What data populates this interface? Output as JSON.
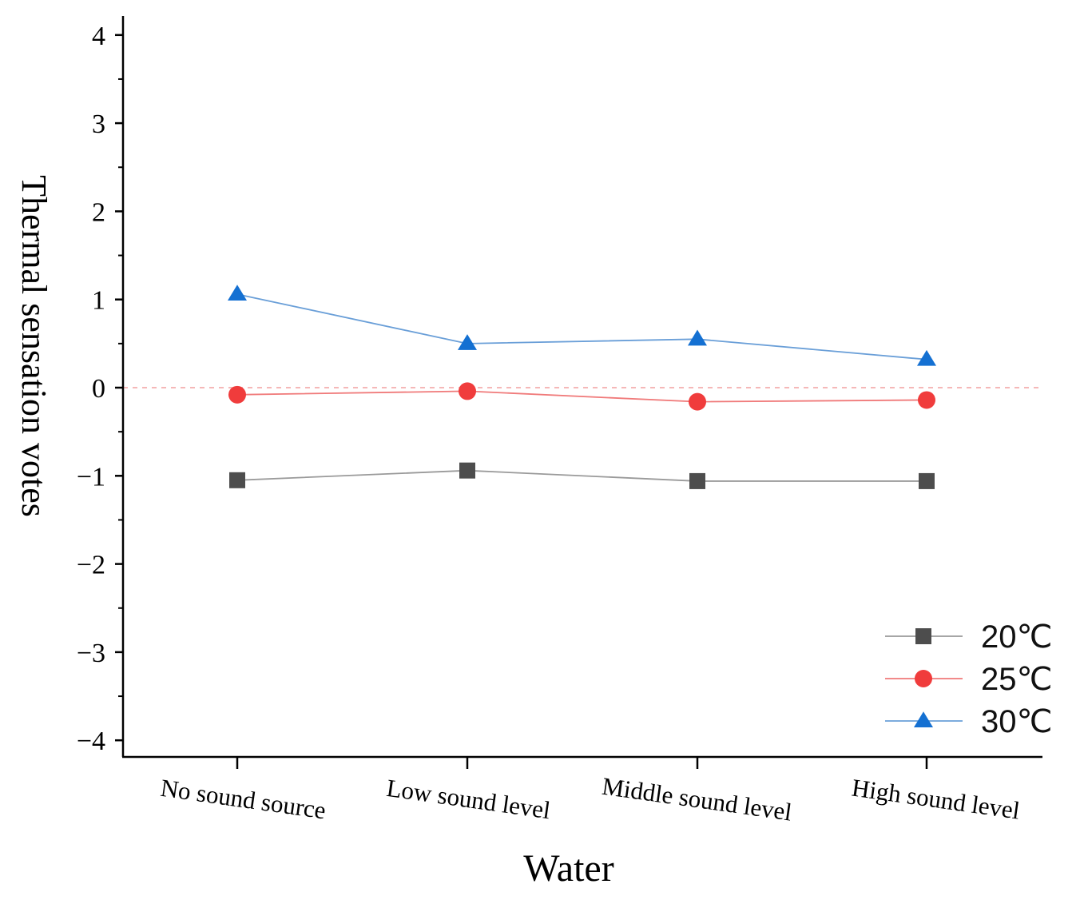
{
  "chart_data": {
    "type": "line",
    "title": "",
    "xlabel": "Water",
    "ylabel": "Thermal sensation votes",
    "categories": [
      "No sound source",
      "Low sound level",
      "Middle sound level",
      "High sound level"
    ],
    "ylim": [
      -4.2,
      4.2
    ],
    "yticks": [
      4,
      3,
      2,
      1,
      0,
      -1,
      -2,
      -3,
      -4
    ],
    "ytick_labels": [
      "4",
      "3",
      "2",
      "1",
      "0",
      "−1",
      "−2",
      "−3",
      "−4"
    ],
    "reference_line": 0,
    "legend_position": "bottom-right",
    "series": [
      {
        "name": "20℃",
        "marker": "square",
        "color": "#4d4d4d",
        "line_color": "#9a9a9a",
        "values": [
          -1.05,
          -0.94,
          -1.06,
          -1.06
        ]
      },
      {
        "name": "25℃",
        "marker": "circle",
        "color": "#f03c3c",
        "line_color": "#f07a7a",
        "values": [
          -0.08,
          -0.04,
          -0.16,
          -0.14
        ]
      },
      {
        "name": "30℃",
        "marker": "triangle",
        "color": "#1470d2",
        "line_color": "#6a9fd8",
        "values": [
          1.06,
          0.5,
          0.55,
          0.32
        ]
      }
    ]
  }
}
